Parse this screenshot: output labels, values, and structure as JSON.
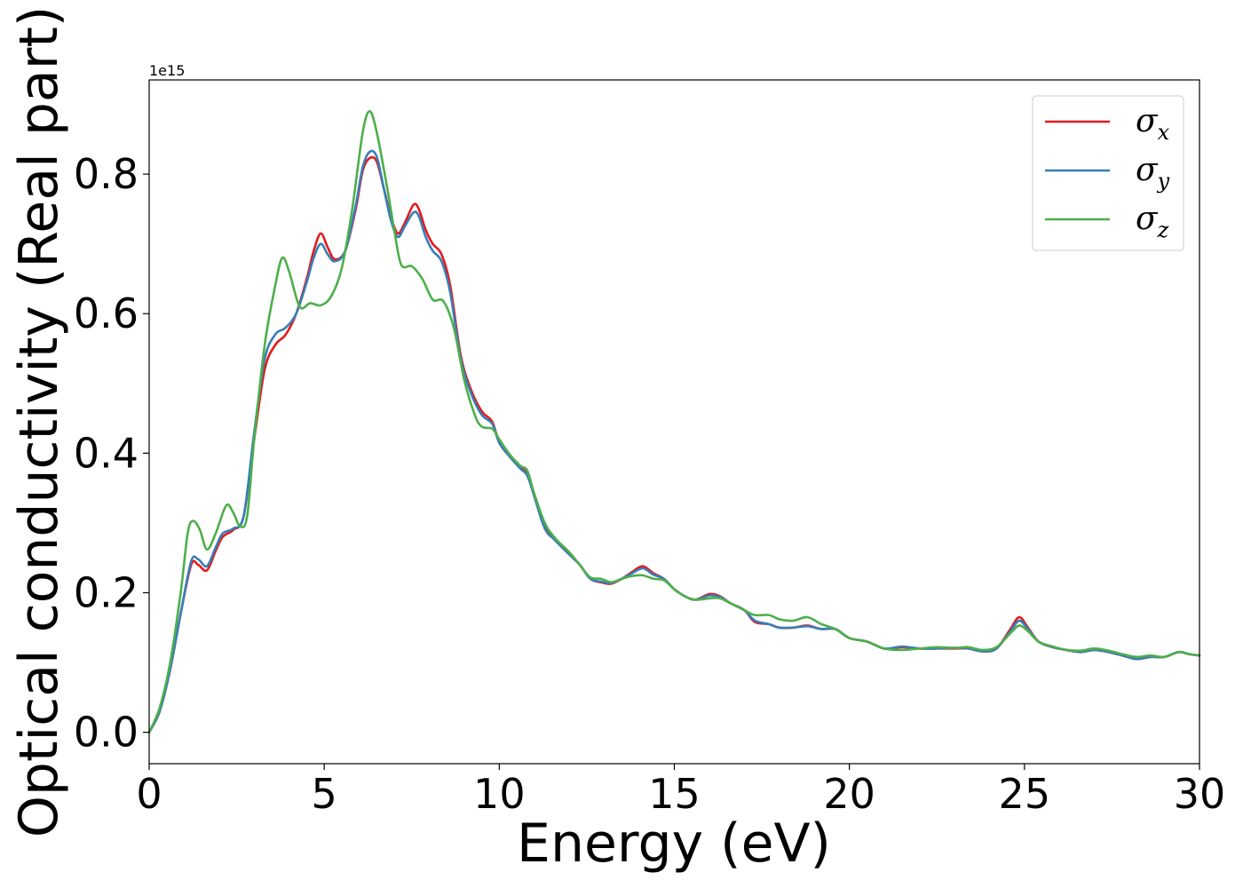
{
  "chart_data": {
    "type": "line",
    "xlabel": "Energy (eV)",
    "ylabel": "Optical conductivity (Real part)",
    "y_offset_label": "1e15",
    "xlim": [
      0,
      30
    ],
    "ylim": [
      -0.045,
      0.935
    ],
    "x_ticks": [
      0,
      5,
      10,
      15,
      20,
      25,
      30
    ],
    "x_tick_labels": [
      "0",
      "5",
      "10",
      "15",
      "20",
      "25",
      "30"
    ],
    "y_ticks": [
      0.0,
      0.2,
      0.4,
      0.6,
      0.8
    ],
    "y_tick_labels": [
      "0.0",
      "0.2",
      "0.4",
      "0.6",
      "0.8"
    ],
    "grid": false,
    "legend_position": "top-right",
    "series": [
      {
        "name": "σ",
        "subscript": "x",
        "color": "#e41a1c",
        "points": [
          [
            0,
            0
          ],
          [
            0.3,
            0.03
          ],
          [
            0.6,
            0.09
          ],
          [
            0.9,
            0.17
          ],
          [
            1.2,
            0.24
          ],
          [
            1.4,
            0.24
          ],
          [
            1.65,
            0.232
          ],
          [
            1.9,
            0.26
          ],
          [
            2.1,
            0.28
          ],
          [
            2.4,
            0.29
          ],
          [
            2.7,
            0.31
          ],
          [
            3.0,
            0.42
          ],
          [
            3.3,
            0.52
          ],
          [
            3.6,
            0.555
          ],
          [
            3.9,
            0.57
          ],
          [
            4.2,
            0.6
          ],
          [
            4.5,
            0.65
          ],
          [
            4.7,
            0.69
          ],
          [
            4.9,
            0.715
          ],
          [
            5.1,
            0.695
          ],
          [
            5.3,
            0.678
          ],
          [
            5.6,
            0.69
          ],
          [
            5.9,
            0.75
          ],
          [
            6.1,
            0.805
          ],
          [
            6.3,
            0.823
          ],
          [
            6.5,
            0.818
          ],
          [
            6.7,
            0.78
          ],
          [
            6.9,
            0.74
          ],
          [
            7.1,
            0.715
          ],
          [
            7.3,
            0.73
          ],
          [
            7.55,
            0.756
          ],
          [
            7.7,
            0.75
          ],
          [
            7.9,
            0.72
          ],
          [
            8.1,
            0.7
          ],
          [
            8.35,
            0.685
          ],
          [
            8.6,
            0.64
          ],
          [
            8.9,
            0.54
          ],
          [
            9.2,
            0.49
          ],
          [
            9.5,
            0.46
          ],
          [
            9.8,
            0.445
          ],
          [
            10.0,
            0.415
          ],
          [
            10.3,
            0.395
          ],
          [
            10.6,
            0.38
          ],
          [
            10.8,
            0.37
          ],
          [
            11.0,
            0.34
          ],
          [
            11.3,
            0.295
          ],
          [
            11.6,
            0.275
          ],
          [
            12.0,
            0.255
          ],
          [
            12.3,
            0.24
          ],
          [
            12.6,
            0.22
          ],
          [
            12.9,
            0.215
          ],
          [
            13.2,
            0.213
          ],
          [
            13.5,
            0.22
          ],
          [
            13.8,
            0.23
          ],
          [
            14.1,
            0.238
          ],
          [
            14.4,
            0.228
          ],
          [
            14.7,
            0.22
          ],
          [
            15.0,
            0.205
          ],
          [
            15.3,
            0.195
          ],
          [
            15.6,
            0.19
          ],
          [
            16.0,
            0.198
          ],
          [
            16.3,
            0.195
          ],
          [
            16.6,
            0.185
          ],
          [
            17.0,
            0.175
          ],
          [
            17.3,
            0.158
          ],
          [
            17.7,
            0.155
          ],
          [
            18.0,
            0.15
          ],
          [
            18.4,
            0.15
          ],
          [
            18.8,
            0.153
          ],
          [
            19.2,
            0.148
          ],
          [
            19.6,
            0.148
          ],
          [
            20.0,
            0.135
          ],
          [
            20.5,
            0.13
          ],
          [
            21.0,
            0.12
          ],
          [
            21.5,
            0.122
          ],
          [
            22.0,
            0.12
          ],
          [
            22.5,
            0.12
          ],
          [
            23.0,
            0.12
          ],
          [
            23.4,
            0.12
          ],
          [
            23.8,
            0.116
          ],
          [
            24.2,
            0.12
          ],
          [
            24.6,
            0.148
          ],
          [
            24.85,
            0.165
          ],
          [
            25.1,
            0.15
          ],
          [
            25.4,
            0.13
          ],
          [
            25.8,
            0.122
          ],
          [
            26.2,
            0.118
          ],
          [
            26.6,
            0.115
          ],
          [
            27.0,
            0.118
          ],
          [
            27.4,
            0.115
          ],
          [
            27.8,
            0.11
          ],
          [
            28.2,
            0.105
          ],
          [
            28.6,
            0.108
          ],
          [
            29.0,
            0.108
          ],
          [
            29.4,
            0.115
          ],
          [
            29.7,
            0.112
          ],
          [
            30.0,
            0.11
          ]
        ]
      },
      {
        "name": "σ",
        "subscript": "y",
        "color": "#377eb8",
        "points": [
          [
            0,
            0
          ],
          [
            0.3,
            0.03
          ],
          [
            0.6,
            0.09
          ],
          [
            0.9,
            0.17
          ],
          [
            1.2,
            0.245
          ],
          [
            1.4,
            0.248
          ],
          [
            1.65,
            0.238
          ],
          [
            1.9,
            0.265
          ],
          [
            2.1,
            0.285
          ],
          [
            2.4,
            0.292
          ],
          [
            2.7,
            0.31
          ],
          [
            3.0,
            0.43
          ],
          [
            3.3,
            0.535
          ],
          [
            3.6,
            0.57
          ],
          [
            3.9,
            0.58
          ],
          [
            4.2,
            0.6
          ],
          [
            4.5,
            0.645
          ],
          [
            4.7,
            0.68
          ],
          [
            4.9,
            0.7
          ],
          [
            5.1,
            0.685
          ],
          [
            5.3,
            0.675
          ],
          [
            5.6,
            0.69
          ],
          [
            5.9,
            0.755
          ],
          [
            6.1,
            0.81
          ],
          [
            6.3,
            0.832
          ],
          [
            6.5,
            0.825
          ],
          [
            6.7,
            0.78
          ],
          [
            6.9,
            0.735
          ],
          [
            7.1,
            0.71
          ],
          [
            7.3,
            0.725
          ],
          [
            7.55,
            0.745
          ],
          [
            7.7,
            0.74
          ],
          [
            7.9,
            0.71
          ],
          [
            8.1,
            0.69
          ],
          [
            8.35,
            0.675
          ],
          [
            8.6,
            0.63
          ],
          [
            8.9,
            0.535
          ],
          [
            9.2,
            0.485
          ],
          [
            9.5,
            0.455
          ],
          [
            9.8,
            0.442
          ],
          [
            10.0,
            0.415
          ],
          [
            10.3,
            0.395
          ],
          [
            10.6,
            0.378
          ],
          [
            10.8,
            0.368
          ],
          [
            11.0,
            0.338
          ],
          [
            11.3,
            0.292
          ],
          [
            11.6,
            0.275
          ],
          [
            12.0,
            0.255
          ],
          [
            12.3,
            0.24
          ],
          [
            12.6,
            0.22
          ],
          [
            12.9,
            0.216
          ],
          [
            13.2,
            0.214
          ],
          [
            13.5,
            0.22
          ],
          [
            13.8,
            0.228
          ],
          [
            14.1,
            0.235
          ],
          [
            14.4,
            0.226
          ],
          [
            14.7,
            0.22
          ],
          [
            15.0,
            0.205
          ],
          [
            15.3,
            0.195
          ],
          [
            15.6,
            0.19
          ],
          [
            16.0,
            0.196
          ],
          [
            16.3,
            0.194
          ],
          [
            16.6,
            0.185
          ],
          [
            17.0,
            0.175
          ],
          [
            17.3,
            0.16
          ],
          [
            17.7,
            0.155
          ],
          [
            18.0,
            0.15
          ],
          [
            18.4,
            0.15
          ],
          [
            18.8,
            0.152
          ],
          [
            19.2,
            0.148
          ],
          [
            19.6,
            0.148
          ],
          [
            20.0,
            0.135
          ],
          [
            20.5,
            0.13
          ],
          [
            21.0,
            0.12
          ],
          [
            21.5,
            0.123
          ],
          [
            22.0,
            0.12
          ],
          [
            22.5,
            0.12
          ],
          [
            23.0,
            0.121
          ],
          [
            23.4,
            0.12
          ],
          [
            23.8,
            0.116
          ],
          [
            24.2,
            0.12
          ],
          [
            24.6,
            0.145
          ],
          [
            24.85,
            0.16
          ],
          [
            25.1,
            0.148
          ],
          [
            25.4,
            0.13
          ],
          [
            25.8,
            0.122
          ],
          [
            26.2,
            0.118
          ],
          [
            26.6,
            0.115
          ],
          [
            27.0,
            0.118
          ],
          [
            27.4,
            0.115
          ],
          [
            27.8,
            0.11
          ],
          [
            28.2,
            0.105
          ],
          [
            28.6,
            0.108
          ],
          [
            29.0,
            0.108
          ],
          [
            29.4,
            0.115
          ],
          [
            29.7,
            0.112
          ],
          [
            30.0,
            0.11
          ]
        ]
      },
      {
        "name": "σ",
        "subscript": "z",
        "color": "#4daf4a",
        "points": [
          [
            0,
            0
          ],
          [
            0.3,
            0.035
          ],
          [
            0.6,
            0.1
          ],
          [
            0.9,
            0.2
          ],
          [
            1.1,
            0.285
          ],
          [
            1.25,
            0.303
          ],
          [
            1.45,
            0.29
          ],
          [
            1.65,
            0.262
          ],
          [
            1.9,
            0.285
          ],
          [
            2.2,
            0.325
          ],
          [
            2.4,
            0.315
          ],
          [
            2.6,
            0.295
          ],
          [
            2.8,
            0.31
          ],
          [
            3.0,
            0.42
          ],
          [
            3.3,
            0.555
          ],
          [
            3.6,
            0.64
          ],
          [
            3.8,
            0.68
          ],
          [
            4.0,
            0.66
          ],
          [
            4.3,
            0.61
          ],
          [
            4.6,
            0.615
          ],
          [
            4.9,
            0.612
          ],
          [
            5.2,
            0.625
          ],
          [
            5.5,
            0.665
          ],
          [
            5.8,
            0.75
          ],
          [
            6.1,
            0.86
          ],
          [
            6.3,
            0.89
          ],
          [
            6.5,
            0.86
          ],
          [
            6.8,
            0.78
          ],
          [
            7.0,
            0.72
          ],
          [
            7.2,
            0.67
          ],
          [
            7.5,
            0.668
          ],
          [
            7.8,
            0.65
          ],
          [
            8.1,
            0.62
          ],
          [
            8.4,
            0.618
          ],
          [
            8.7,
            0.58
          ],
          [
            9.0,
            0.505
          ],
          [
            9.3,
            0.455
          ],
          [
            9.5,
            0.438
          ],
          [
            9.8,
            0.435
          ],
          [
            10.0,
            0.42
          ],
          [
            10.3,
            0.398
          ],
          [
            10.6,
            0.382
          ],
          [
            10.8,
            0.375
          ],
          [
            11.0,
            0.342
          ],
          [
            11.3,
            0.3
          ],
          [
            11.6,
            0.278
          ],
          [
            12.0,
            0.258
          ],
          [
            12.3,
            0.24
          ],
          [
            12.6,
            0.222
          ],
          [
            12.9,
            0.22
          ],
          [
            13.2,
            0.215
          ],
          [
            13.5,
            0.22
          ],
          [
            13.8,
            0.224
          ],
          [
            14.1,
            0.225
          ],
          [
            14.4,
            0.22
          ],
          [
            14.7,
            0.218
          ],
          [
            15.0,
            0.205
          ],
          [
            15.3,
            0.195
          ],
          [
            15.6,
            0.19
          ],
          [
            16.0,
            0.192
          ],
          [
            16.3,
            0.192
          ],
          [
            16.6,
            0.185
          ],
          [
            17.0,
            0.175
          ],
          [
            17.3,
            0.168
          ],
          [
            17.7,
            0.168
          ],
          [
            18.0,
            0.162
          ],
          [
            18.4,
            0.16
          ],
          [
            18.8,
            0.165
          ],
          [
            19.2,
            0.155
          ],
          [
            19.6,
            0.148
          ],
          [
            20.0,
            0.135
          ],
          [
            20.5,
            0.13
          ],
          [
            21.0,
            0.12
          ],
          [
            21.5,
            0.118
          ],
          [
            22.0,
            0.12
          ],
          [
            22.5,
            0.122
          ],
          [
            23.0,
            0.121
          ],
          [
            23.4,
            0.122
          ],
          [
            23.8,
            0.118
          ],
          [
            24.2,
            0.122
          ],
          [
            24.6,
            0.142
          ],
          [
            24.85,
            0.153
          ],
          [
            25.1,
            0.145
          ],
          [
            25.4,
            0.13
          ],
          [
            25.8,
            0.123
          ],
          [
            26.2,
            0.118
          ],
          [
            26.6,
            0.117
          ],
          [
            27.0,
            0.12
          ],
          [
            27.4,
            0.117
          ],
          [
            27.8,
            0.112
          ],
          [
            28.2,
            0.108
          ],
          [
            28.6,
            0.11
          ],
          [
            29.0,
            0.108
          ],
          [
            29.4,
            0.115
          ],
          [
            29.7,
            0.112
          ],
          [
            30.0,
            0.11
          ]
        ]
      }
    ]
  }
}
